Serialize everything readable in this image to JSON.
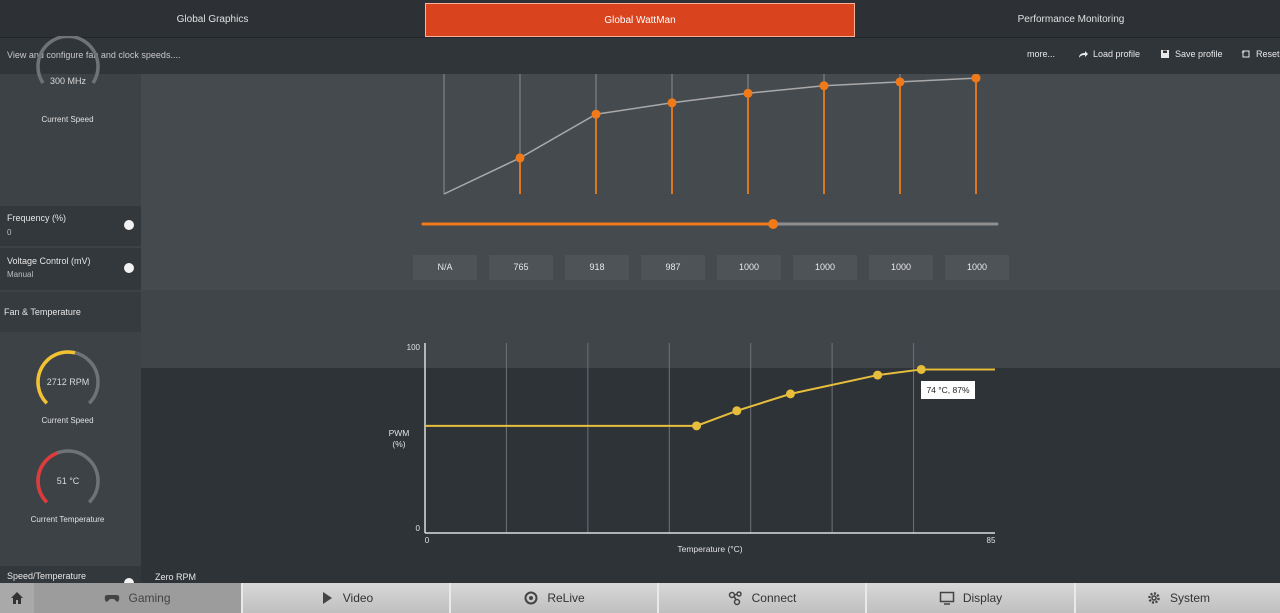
{
  "tabs": [
    {
      "label": "Global Graphics",
      "active": false
    },
    {
      "label": "Global WattMan",
      "active": true
    },
    {
      "label": "Performance Monitoring",
      "active": false
    }
  ],
  "subheader": {
    "description": "View and configure fan and clock speeds....",
    "more_label": "more...",
    "load_label": "Load profile",
    "save_label": "Save profile",
    "reset_label": "Reset"
  },
  "sidebar": {
    "clock_gauge": {
      "value": "300 MHz",
      "label": "Current Speed"
    },
    "frequency": {
      "label": "Frequency (%)",
      "value": "0"
    },
    "voltage": {
      "label": "Voltage Control (mV)",
      "value": "Manual"
    },
    "section_title": "Fan & Temperature",
    "fan_gauge": {
      "value": "2712 RPM",
      "label": "Current Speed",
      "level": 0.55,
      "color": "#f2c230"
    },
    "temp_gauge": {
      "value": "51 °C",
      "label": "Current Temperature",
      "level": 0.42,
      "color": "#e23a3a"
    },
    "speed_temp_label": "Speed/Temperature"
  },
  "zero_rpm_label": "Zero RPM",
  "voltage_values": [
    "N/A",
    "765",
    "918",
    "987",
    "1000",
    "1000",
    "1000",
    "1000"
  ],
  "state_slider": {
    "fraction": 0.61,
    "color": "#f07a1a"
  },
  "fan_chart": {
    "ylabel": "PWM\n(%)",
    "ylabel_1": "PWM",
    "ylabel_2": "(%)",
    "xlabel": "Temperature (°C)",
    "xmin_label": "0",
    "xmax_label": "85",
    "ymin_label": "0",
    "ymax_label": "100",
    "tooltip": "74 °C, 87%",
    "line_color": "#e6be3c"
  },
  "bottom_nav": [
    {
      "label": "Gaming",
      "icon": "gamepad-icon"
    },
    {
      "label": "Video",
      "icon": "play-icon"
    },
    {
      "label": "ReLive",
      "icon": "relive-icon"
    },
    {
      "label": "Connect",
      "icon": "connect-icon"
    },
    {
      "label": "Display",
      "icon": "monitor-icon"
    },
    {
      "label": "System",
      "icon": "gear-icon"
    }
  ],
  "chart_data": [
    {
      "type": "line",
      "title": "",
      "x": [
        0,
        1,
        2,
        3,
        4,
        5,
        6,
        7
      ],
      "series": [
        {
          "values": [
            0,
            19,
            42,
            48,
            53,
            57,
            59,
            61
          ]
        }
      ],
      "grid": true
    },
    {
      "type": "line",
      "title": "",
      "xlabel": "Temperature (°C)",
      "ylabel": "PWM (%)",
      "xlim": [
        0,
        85
      ],
      "ylim": [
        0,
        100
      ],
      "x": [
        0,
        40.5,
        46.5,
        54.5,
        67.5,
        74,
        85
      ],
      "series": [
        {
          "values": [
            57,
            57,
            65,
            74,
            84,
            87,
            87
          ]
        }
      ],
      "grid": true,
      "annotations": [
        "74 °C, 87%"
      ]
    }
  ]
}
